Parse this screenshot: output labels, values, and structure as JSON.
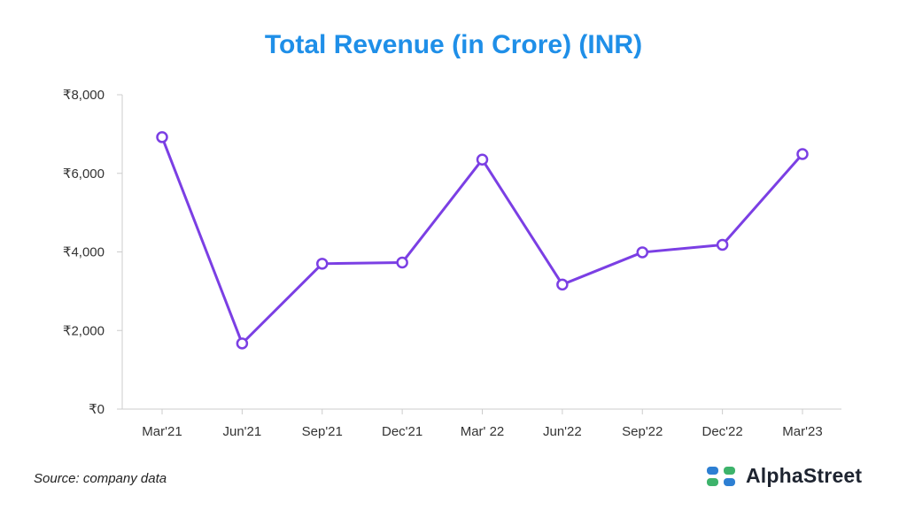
{
  "title": "Total Revenue (in Crore) (INR)",
  "source": "Source: company data",
  "brand": {
    "name": "AlphaStreet",
    "logo_colors": [
      "#2d7fd3",
      "#3db36b"
    ]
  },
  "chart_data": {
    "type": "line",
    "title": "Total Revenue (in Crore) (INR)",
    "xlabel": "",
    "ylabel": "",
    "categories": [
      "Mar'21",
      "Jun'21",
      "Sep'21",
      "Dec'21",
      "Mar' 22",
      "Jun'22",
      "Sep'22",
      "Dec'22",
      "Mar'23"
    ],
    "series": [
      {
        "name": "Total Revenue",
        "color": "#7b3fe4",
        "values": [
          6920,
          1670,
          3700,
          3730,
          6350,
          3170,
          3990,
          4180,
          6490
        ]
      }
    ],
    "ylim": [
      0,
      8000
    ],
    "yticks": [
      0,
      2000,
      4000,
      6000,
      8000
    ],
    "ytick_labels": [
      "₹0",
      "₹2,000",
      "₹4,000",
      "₹6,000",
      "₹8,000"
    ],
    "grid": false,
    "legend": "none"
  }
}
